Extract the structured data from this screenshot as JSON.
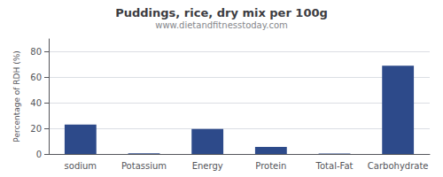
{
  "chart_data": {
    "type": "bar",
    "title": "Puddings, rice, dry mix per 100g",
    "subtitle": "www.dietandfitnesstoday.com",
    "categories": [
      "sodium",
      "Potassium",
      "Energy",
      "Protein",
      "Total-Fat",
      "Carbohydrate"
    ],
    "values": [
      23,
      0.5,
      19.5,
      5.5,
      0.3,
      69
    ],
    "color": "#2d4a8a",
    "ylabel": "Percentage of RDH (%)",
    "ylim": [
      0,
      90
    ],
    "yticks": [
      0,
      20,
      40,
      60,
      80
    ],
    "grid": true
  }
}
